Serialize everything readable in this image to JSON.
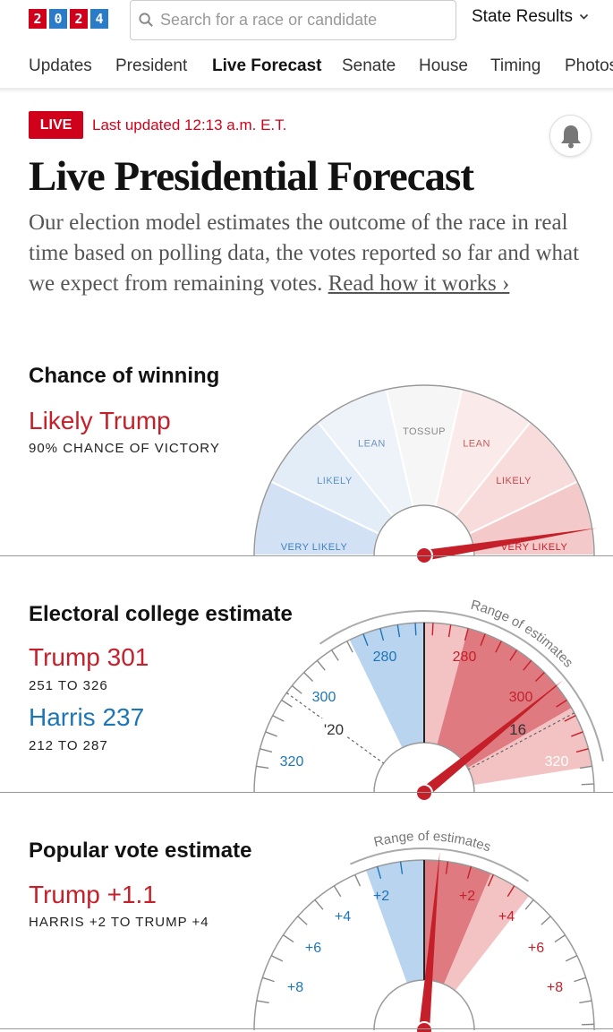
{
  "header": {
    "logo_digits": [
      "2",
      "0",
      "2",
      "4"
    ],
    "search_placeholder": "Search for a race or candidate",
    "state_results_label": "State Results",
    "nav": [
      "Updates",
      "President",
      "Live Forecast",
      "Senate",
      "House",
      "Timing",
      "Photos"
    ],
    "active_nav": "Live Forecast"
  },
  "live": {
    "badge": "LIVE",
    "updated": "Last updated 12:13 a.m. E.T."
  },
  "page": {
    "title": "Live Presidential Forecast",
    "description": "Our election model estimates the outcome of the race in real time based on polling data, the votes reported so far and what we expect from remaining votes.",
    "read_more": "Read how it works ›"
  },
  "chance": {
    "heading": "Chance of winning",
    "headline": "Likely Trump",
    "sub": "90% CHANCE OF VICTORY",
    "trump_win_probability": 0.9,
    "segments": [
      {
        "label": "VERY LIKELY",
        "side": "dem"
      },
      {
        "label": "LIKELY",
        "side": "dem"
      },
      {
        "label": "LEAN",
        "side": "dem"
      },
      {
        "label": "TOSSUP",
        "side": "none"
      },
      {
        "label": "LEAN",
        "side": "rep"
      },
      {
        "label": "LIKELY",
        "side": "rep"
      },
      {
        "label": "VERY LIKELY",
        "side": "rep"
      }
    ]
  },
  "electoral": {
    "heading": "Electoral college estimate",
    "trump_line": "Trump 301",
    "trump_range": "251 TO 326",
    "harris_line": "Harris 237",
    "harris_range": "212 TO 287",
    "range_caption": "Range of estimates",
    "tick_labels_left": [
      "280",
      "300",
      "320"
    ],
    "tick_labels_right": [
      "280",
      "300",
      "320"
    ],
    "past_left": "'20",
    "past_right": "'16"
  },
  "popular": {
    "heading": "Popular vote estimate",
    "headline": "Trump +1.1",
    "range_text": "HARRIS +2 TO TRUMP +4",
    "range_caption": "Range of estimates",
    "tick_labels_left": [
      "+2",
      "+4",
      "+6",
      "+8"
    ],
    "tick_labels_right": [
      "+2",
      "+4",
      "+6",
      "+8"
    ]
  },
  "colors": {
    "red": "#c5202a",
    "blue": "#1d75b8",
    "live_red": "#d0021b"
  }
}
